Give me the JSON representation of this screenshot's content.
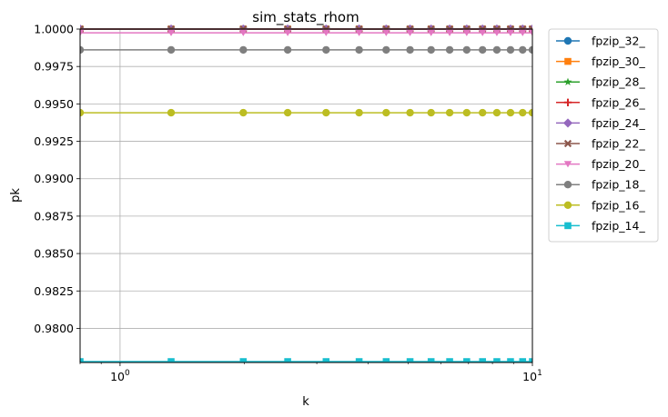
{
  "chart_data": {
    "type": "line",
    "title": "sim_stats_rhom",
    "xlabel": "k",
    "ylabel": "pk",
    "xscale": "log",
    "xlim": [
      0.8,
      10
    ],
    "ylim": [
      0.97772,
      1.0
    ],
    "grid": true,
    "legend_position": "outside-right",
    "x": [
      0.8,
      1.33,
      1.99,
      2.55,
      3.16,
      3.8,
      4.42,
      5.05,
      5.68,
      6.3,
      6.93,
      7.57,
      8.2,
      8.85,
      9.47,
      10.0
    ],
    "x_ticks": [
      {
        "value": 1,
        "base": "10",
        "exp": "0"
      },
      {
        "value": 10,
        "base": "10",
        "exp": "1"
      }
    ],
    "y_ticks": [
      {
        "value": 0.98,
        "label": "0.9800"
      },
      {
        "value": 0.9825,
        "label": "0.9825"
      },
      {
        "value": 0.985,
        "label": "0.9850"
      },
      {
        "value": 0.9875,
        "label": "0.9875"
      },
      {
        "value": 0.99,
        "label": "0.9900"
      },
      {
        "value": 0.9925,
        "label": "0.9925"
      },
      {
        "value": 0.995,
        "label": "0.9950"
      },
      {
        "value": 0.9975,
        "label": "0.9975"
      },
      {
        "value": 1.0,
        "label": "1.0000"
      }
    ],
    "series": [
      {
        "name": "fpzip_32_",
        "color": "#1f77b4",
        "marker": "circle",
        "value": 1.0
      },
      {
        "name": "fpzip_30_",
        "color": "#ff7f0e",
        "marker": "square",
        "value": 1.0
      },
      {
        "name": "fpzip_28_",
        "color": "#2ca02c",
        "marker": "star",
        "value": 1.0
      },
      {
        "name": "fpzip_26_",
        "color": "#d62728",
        "marker": "plus",
        "value": 1.0
      },
      {
        "name": "fpzip_24_",
        "color": "#9467bd",
        "marker": "diamond",
        "value": 1.0
      },
      {
        "name": "fpzip_22_",
        "color": "#8c564b",
        "marker": "x",
        "value": 1.0
      },
      {
        "name": "fpzip_20_",
        "color": "#e377c2",
        "marker": "triangle-down",
        "value": 0.99975
      },
      {
        "name": "fpzip_18_",
        "color": "#7f7f7f",
        "marker": "circle",
        "value": 0.99861
      },
      {
        "name": "fpzip_16_",
        "color": "#bcbd22",
        "marker": "circle",
        "value": 0.99441
      },
      {
        "name": "fpzip_14_",
        "color": "#17becf",
        "marker": "square",
        "value": 0.97778
      }
    ]
  }
}
